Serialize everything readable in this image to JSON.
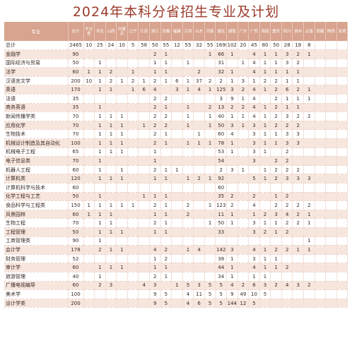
{
  "title": "2024年本科分省招生专业及计划",
  "columns": [
    "专业",
    "总计",
    "不分省",
    "河北",
    "山西",
    "内蒙古",
    "辽宁",
    "江苏",
    "浙江",
    "安徽",
    "福建",
    "江西",
    "山东",
    "河南",
    "湖北",
    "湖南",
    "广东",
    "广西",
    "海南",
    "重庆",
    "四川",
    "贵州",
    "云南",
    "西藏",
    "陕西",
    "甘肃"
  ],
  "rows": [
    [
      "总计",
      "2465",
      "10",
      "25",
      "24",
      "10",
      "5",
      "58",
      "50",
      "55",
      "12",
      "55",
      "32",
      "55",
      "1698",
      "102",
      "20",
      "45",
      "80",
      "50",
      "28",
      "18",
      "8"
    ],
    [
      "金融学",
      "90",
      "",
      "",
      "",
      "",
      "",
      "",
      "2",
      "1",
      "",
      "",
      "",
      "1",
      "66",
      "1",
      "",
      "4",
      "1",
      "1",
      "3",
      "2",
      "1"
    ],
    [
      "国际经济与贸易",
      "50",
      "",
      "1",
      "",
      "",
      "",
      "",
      "1",
      "1",
      "",
      "1",
      "",
      "",
      "31",
      "",
      "1",
      "4",
      "1",
      "1",
      "3",
      "2"
    ],
    [
      "法学",
      "60",
      "1",
      "1",
      "2",
      "",
      "1",
      "",
      "1",
      "1",
      "",
      "",
      "2",
      "",
      "32",
      "1",
      "",
      "4",
      "1",
      "1",
      "1",
      "1"
    ],
    [
      "汉语言文学",
      "200",
      "10",
      "1",
      "2",
      "1",
      "2",
      "1",
      "2",
      "1",
      "6",
      "1",
      "37",
      "2",
      "2",
      "1",
      "3",
      "1",
      "2",
      "2",
      "1",
      "1"
    ],
    [
      "英语",
      "170",
      "",
      "1",
      "1",
      "",
      "1",
      "6",
      "4",
      "",
      "3",
      "1",
      "4",
      "1",
      "125",
      "3",
      "2",
      "4",
      "1",
      "2",
      "6",
      "2",
      "1"
    ],
    [
      "法语",
      "35",
      "",
      "",
      "",
      "",
      "",
      "",
      "2",
      "2",
      "",
      "",
      "",
      "",
      "3",
      "9",
      "1",
      "4",
      "",
      "2",
      "1",
      "1",
      "1"
    ],
    [
      "商务英语",
      "35",
      "",
      "1",
      "",
      "",
      "",
      "",
      "2",
      "1",
      "",
      "1",
      "",
      "2",
      "13",
      "2",
      "2",
      "4",
      "1",
      "2",
      "1",
      "1"
    ],
    [
      "新闻传播学类",
      "70",
      "",
      "1",
      "1",
      "1",
      "",
      "",
      "2",
      "2",
      "",
      "1",
      "",
      "1",
      "40",
      "1",
      "1",
      "4",
      "1",
      "2",
      "3",
      "2",
      "2"
    ],
    [
      "应用化学",
      "70",
      "",
      "1",
      "1",
      "1",
      "",
      "1",
      "2",
      "2",
      "",
      "1",
      "",
      "1",
      "50",
      "3",
      "1",
      "3",
      "1",
      "2",
      "2",
      "2"
    ],
    [
      "生物技术",
      "70",
      "",
      "1",
      "1",
      "1",
      "",
      "",
      "2",
      "1",
      "",
      "",
      "1",
      "",
      "60",
      "4",
      "",
      "3",
      "1",
      "1",
      "3",
      "3"
    ],
    [
      "机械设计制造及其自动化",
      "100",
      "",
      "1",
      "1",
      "1",
      "",
      "",
      "2",
      "1",
      "",
      "1",
      "1",
      "1",
      "78",
      "1",
      "",
      "3",
      "1",
      "1",
      "3",
      "3"
    ],
    [
      "机械电子工程",
      "65",
      "",
      "1",
      "1",
      "1",
      "",
      "",
      "1",
      "",
      "",
      "",
      "",
      "",
      "53",
      "1",
      "",
      "3",
      "1",
      "",
      "2"
    ],
    [
      "电子信息类",
      "70",
      "",
      "1",
      "",
      "",
      "",
      "",
      "1",
      "",
      "",
      "",
      "",
      "",
      "54",
      "",
      "",
      "3",
      "",
      "2",
      "2"
    ],
    [
      "机器人工程",
      "60",
      "",
      "1",
      "",
      "1",
      "",
      "",
      "2",
      "1",
      "1",
      "",
      "",
      "",
      "2",
      "3",
      "1",
      "",
      "1",
      "2",
      "2",
      "2"
    ],
    [
      "计算机类",
      "120",
      "",
      "1",
      "1",
      "1",
      "",
      "",
      "1",
      "1",
      "",
      "1",
      "2",
      "1",
      "92",
      "",
      "",
      "5",
      "1",
      "2",
      "3",
      "3",
      "3"
    ],
    [
      "计算机科学与技术",
      "60",
      "",
      "",
      "",
      "",
      "",
      "",
      "",
      "",
      "",
      "",
      "",
      "",
      "60"
    ],
    [
      "化学工程与工艺",
      "50",
      "",
      "1",
      "",
      "",
      "",
      "1",
      "1",
      "1",
      "",
      "",
      "",
      "",
      "35",
      "2",
      "",
      "2",
      "",
      "1",
      "2"
    ],
    [
      "食品科学与工程类",
      "150",
      "1",
      "1",
      "1",
      "1",
      "1",
      "",
      "2",
      "1",
      "",
      "2",
      "",
      "1",
      "123",
      "2",
      "",
      "4",
      "",
      "2",
      "2",
      "2",
      "2"
    ],
    [
      "风景园林",
      "60",
      "1",
      "1",
      "1",
      "",
      "",
      "",
      "1",
      "1",
      "",
      "2",
      "",
      "",
      "11",
      "1",
      "",
      "1",
      "2",
      "3",
      "4",
      "2",
      "1"
    ],
    [
      "生物工程",
      "70",
      "",
      "1",
      "1",
      "",
      "",
      "",
      "2",
      "1",
      "",
      "",
      "",
      "1",
      "50",
      "1",
      "",
      "3",
      "1",
      "1",
      "2",
      "2",
      "1"
    ],
    [
      "工程管理",
      "50",
      "",
      "1",
      "1",
      "1",
      "",
      "",
      "1",
      "1",
      "",
      "",
      "",
      "",
      "33",
      "",
      "",
      "3",
      "2",
      "1",
      "2"
    ],
    [
      "工商管理类",
      "90",
      "",
      "1",
      "",
      "",
      "",
      "",
      "",
      "",
      "",
      "",
      "",
      "",
      "",
      "",
      "",
      "",
      "",
      "",
      "",
      "",
      "1"
    ],
    [
      "会计学",
      "178",
      "",
      "2",
      "1",
      "1",
      "",
      "",
      "4",
      "2",
      "",
      "1",
      "4",
      "",
      "142",
      "3",
      "",
      "4",
      "1",
      "2",
      "2",
      "1",
      "1"
    ],
    [
      "财务管理",
      "52",
      "",
      "",
      "",
      "",
      "",
      "",
      "1",
      "2",
      "",
      "",
      "",
      "",
      "38",
      "1",
      "",
      "3",
      "1",
      "1"
    ],
    [
      "审计学",
      "60",
      "",
      "1",
      "1",
      "1",
      "",
      "",
      "1",
      "1",
      "",
      "",
      "",
      "",
      "44",
      "1",
      "",
      "4",
      "1",
      "1",
      "2"
    ],
    [
      "旅游管理",
      "40",
      "",
      "1",
      "",
      "",
      "",
      "",
      "2",
      "1",
      "",
      "",
      "",
      "",
      "34",
      "1",
      "",
      "1",
      "1"
    ],
    [
      "广播电视编导",
      "60",
      "",
      "2",
      "3",
      "",
      "",
      "4",
      "3",
      "",
      "1",
      "5",
      "3",
      "5",
      "5",
      "4",
      "2",
      "6",
      "3",
      "2",
      "4",
      "3",
      "2"
    ],
    [
      "美术学",
      "100",
      "",
      "",
      "",
      "",
      "",
      "",
      "9",
      "5",
      "",
      "4",
      "11",
      "5",
      "5",
      "9",
      "49",
      "10",
      "5"
    ],
    [
      "设计学类",
      "200",
      "",
      "",
      "",
      "",
      "",
      "",
      "9",
      "5",
      "",
      "4",
      "6",
      "5",
      "5",
      "144",
      "12",
      "5"
    ]
  ]
}
